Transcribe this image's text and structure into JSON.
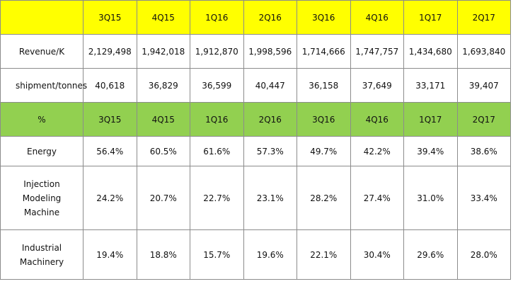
{
  "table1": {
    "columns": [
      "3Q15",
      "4Q15",
      "1Q16",
      "2Q16",
      "3Q16",
      "4Q16",
      "1Q17",
      "2Q17"
    ],
    "rows": [
      {
        "label": "Revenue/K",
        "cells": [
          "2,129,498",
          "1,942,018",
          "1,912,870",
          "1,998,596",
          "1,714,666",
          "1,747,757",
          "1,434,680",
          "1,693,840"
        ]
      },
      {
        "label": "shipment/tonnes",
        "cells": [
          "40,618",
          "36,829",
          "36,599",
          "40,447",
          "36,158",
          "37,649",
          "33,171",
          "39,407"
        ]
      }
    ]
  },
  "table2": {
    "corner": "%",
    "columns": [
      "3Q15",
      "4Q15",
      "1Q16",
      "2Q16",
      "3Q16",
      "4Q16",
      "1Q17",
      "2Q17"
    ],
    "rows": [
      {
        "label": "Energy",
        "cells": [
          "56.4%",
          "60.5%",
          "61.6%",
          "57.3%",
          "49.7%",
          "42.2%",
          "39.4%",
          "38.6%"
        ]
      },
      {
        "label": "Injection Modeling Machine",
        "cells": [
          "24.2%",
          "20.7%",
          "22.7%",
          "23.1%",
          "28.2%",
          "27.4%",
          "31.0%",
          "33.4%"
        ]
      },
      {
        "label": "Industrial Machinery",
        "cells": [
          "19.4%",
          "18.8%",
          "15.7%",
          "19.6%",
          "22.1%",
          "30.4%",
          "29.6%",
          "28.0%"
        ]
      }
    ]
  }
}
